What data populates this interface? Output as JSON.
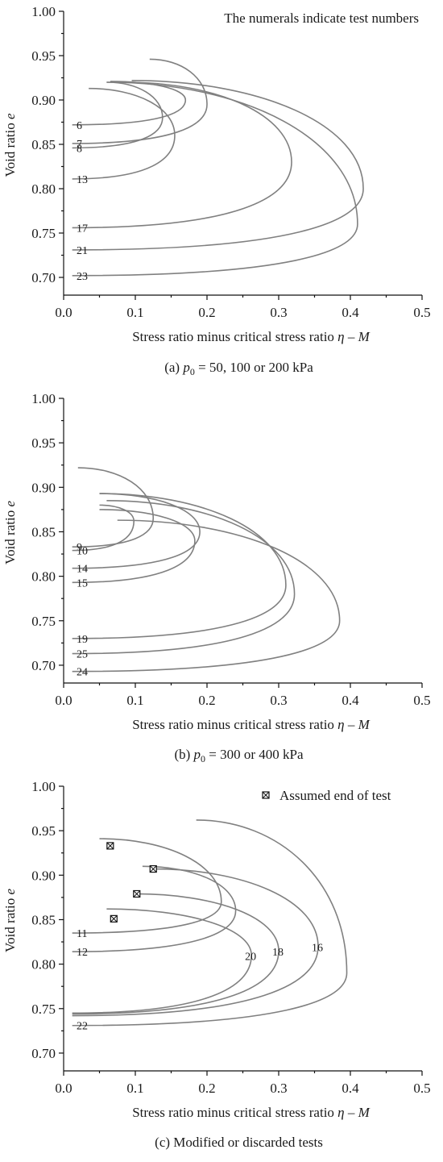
{
  "chart_data": [
    {
      "id": "a",
      "type": "line",
      "caption_prefix": "(a) ",
      "caption_var": "p",
      "caption_sub": "0",
      "caption_rest": " = 50, 100 or 200 kPa",
      "annotation": "The numerals indicate test numbers",
      "xlabel": "Stress ratio minus critical stress ratio ",
      "xlabel_var": "η – M",
      "ylabel": "Void ratio ",
      "ylabel_var": "e",
      "xlim": [
        0,
        0.5
      ],
      "ylim": [
        0.68,
        1.0
      ],
      "xticks": [
        "0.0",
        "0.1",
        "0.2",
        "0.3",
        "0.4",
        "0.5"
      ],
      "yticks": [
        "0.70",
        "0.75",
        "0.80",
        "0.85",
        "0.90",
        "0.95",
        "1.00"
      ],
      "series": [
        {
          "name": "6",
          "e0": 0.872,
          "xmax": 0.17,
          "emid": 0.9,
          "xend": 0.065,
          "eend": 0.921
        },
        {
          "name": "7",
          "e0": 0.851,
          "xmax": 0.2,
          "emid": 0.895,
          "xend": 0.12,
          "eend": 0.946
        },
        {
          "name": "8",
          "e0": 0.846,
          "xmax": 0.138,
          "emid": 0.88,
          "xend": 0.06,
          "eend": 0.92
        },
        {
          "name": "13",
          "e0": 0.811,
          "xmax": 0.155,
          "emid": 0.86,
          "xend": 0.035,
          "eend": 0.913
        },
        {
          "name": "17",
          "e0": 0.756,
          "xmax": 0.318,
          "emid": 0.83,
          "xend": 0.085,
          "eend": 0.92
        },
        {
          "name": "21",
          "e0": 0.731,
          "xmax": 0.418,
          "emid": 0.8,
          "xend": 0.095,
          "eend": 0.922
        },
        {
          "name": "23",
          "e0": 0.702,
          "xmax": 0.41,
          "emid": 0.76,
          "xend": 0.06,
          "eend": 0.92
        }
      ]
    },
    {
      "id": "b",
      "type": "line",
      "caption_prefix": "(b) ",
      "caption_var": "p",
      "caption_sub": "0",
      "caption_rest": " = 300 or 400 kPa",
      "annotation": "",
      "xlabel": "Stress ratio minus critical stress ratio ",
      "xlabel_var": "η – M",
      "ylabel": "Void ratio ",
      "ylabel_var": "e",
      "xlim": [
        0,
        0.5
      ],
      "ylim": [
        0.68,
        1.0
      ],
      "xticks": [
        "0.0",
        "0.1",
        "0.2",
        "0.3",
        "0.4",
        "0.5"
      ],
      "yticks": [
        "0.70",
        "0.75",
        "0.80",
        "0.85",
        "0.90",
        "0.95",
        "1.00"
      ],
      "series": [
        {
          "name": "9",
          "e0": 0.833,
          "xmax": 0.125,
          "emid": 0.865,
          "xend": 0.02,
          "eend": 0.922
        },
        {
          "name": "10",
          "e0": 0.829,
          "xmax": 0.098,
          "emid": 0.862,
          "xend": 0.05,
          "eend": 0.88
        },
        {
          "name": "14",
          "e0": 0.809,
          "xmax": 0.19,
          "emid": 0.85,
          "xend": 0.05,
          "eend": 0.893
        },
        {
          "name": "15",
          "e0": 0.793,
          "xmax": 0.183,
          "emid": 0.84,
          "xend": 0.05,
          "eend": 0.875
        },
        {
          "name": "19",
          "e0": 0.73,
          "xmax": 0.31,
          "emid": 0.79,
          "xend": 0.05,
          "eend": 0.893
        },
        {
          "name": "25",
          "e0": 0.713,
          "xmax": 0.322,
          "emid": 0.78,
          "xend": 0.06,
          "eend": 0.885
        },
        {
          "name": "24",
          "e0": 0.693,
          "xmax": 0.385,
          "emid": 0.75,
          "xend": 0.075,
          "eend": 0.863
        }
      ]
    },
    {
      "id": "c",
      "type": "line",
      "caption_prefix": "(c) Modified or discarded tests",
      "caption_var": "",
      "caption_sub": "",
      "caption_rest": "",
      "annotation": "",
      "legend_label": "Assumed end of test",
      "xlabel": "Stress ratio minus critical stress ratio ",
      "xlabel_var": "η – M",
      "ylabel": "Void ratio ",
      "ylabel_var": "e",
      "xlim": [
        0,
        0.5
      ],
      "ylim": [
        0.68,
        1.0
      ],
      "xticks": [
        "0.0",
        "0.1",
        "0.2",
        "0.3",
        "0.4",
        "0.5"
      ],
      "yticks": [
        "0.70",
        "0.75",
        "0.80",
        "0.85",
        "0.90",
        "0.95",
        "1.00"
      ],
      "end_markers": [
        [
          0.065,
          0.933
        ],
        [
          0.125,
          0.907
        ],
        [
          0.102,
          0.879
        ],
        [
          0.07,
          0.851
        ]
      ],
      "series": [
        {
          "name": "11",
          "e0": 0.835,
          "xmax": 0.22,
          "emid": 0.87,
          "xend": 0.05,
          "eend": 0.941
        },
        {
          "name": "12",
          "e0": 0.814,
          "xmax": 0.24,
          "emid": 0.86,
          "xend": 0.11,
          "eend": 0.91
        },
        {
          "name": "20",
          "e0": 0.745,
          "xmax": 0.262,
          "emid": 0.81,
          "xend": 0.06,
          "eend": 0.862
        },
        {
          "name": "18",
          "e0": 0.744,
          "xmax": 0.3,
          "emid": 0.815,
          "xend": 0.1,
          "eend": 0.879
        },
        {
          "name": "16",
          "e0": 0.742,
          "xmax": 0.355,
          "emid": 0.82,
          "xend": 0.125,
          "eend": 0.907
        },
        {
          "name": "22",
          "e0": 0.731,
          "xmax": 0.395,
          "emid": 0.79,
          "xend": 0.185,
          "eend": 0.962
        }
      ]
    }
  ]
}
